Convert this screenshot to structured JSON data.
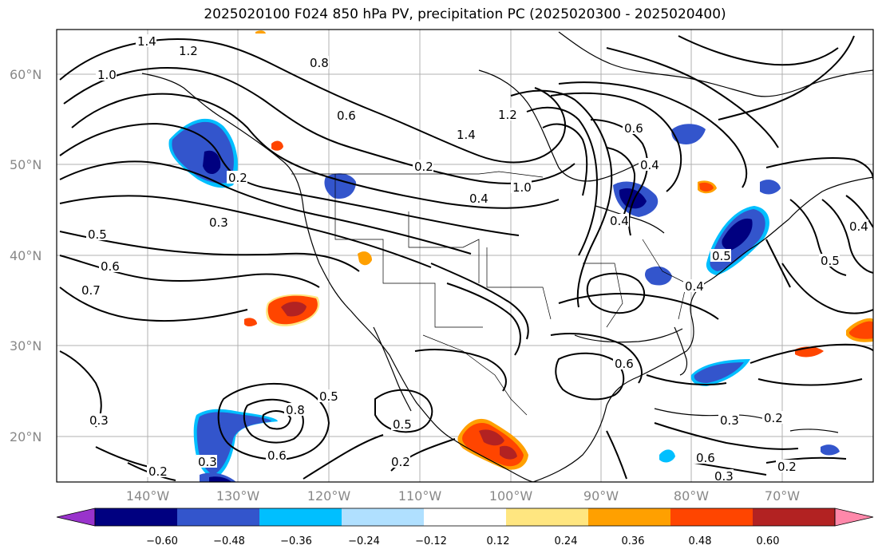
{
  "title": "2025020100 F024 850 hPa PV, precipitation PC (2025020300 - 2025020400)",
  "lat_labels": [
    "60°N",
    "50°N",
    "40°N",
    "30°N",
    "20°N"
  ],
  "lon_labels": [
    "140°W",
    "130°W",
    "120°W",
    "110°W",
    "100°W",
    "90°W",
    "80°W",
    "70°W"
  ],
  "colorbar": {
    "colors": [
      "#9933cc",
      "#000080",
      "#3355cc",
      "#00bfff",
      "#b0e0ff",
      "#ffffff",
      "#ffe680",
      "#ffa000",
      "#ff4500",
      "#b22222",
      "#ff88aa"
    ],
    "ticks": [
      "−0.60",
      "−0.48",
      "−0.36",
      "−0.24",
      "−0.12",
      "0.12",
      "0.24",
      "0.36",
      "0.48",
      "0.60"
    ]
  },
  "contour_labels": [
    "1.4",
    "1.2",
    "1.0",
    "0.8",
    "0.6",
    "0.4",
    "0.3",
    "0.2",
    "0.5",
    "0.6",
    "0.7",
    "0.3",
    "0.6",
    "0.8",
    "0.5",
    "0.5",
    "0.2",
    "0.3",
    "0.2",
    "1.4",
    "1.2",
    "1.0",
    "0.4",
    "0.6",
    "0.2",
    "0.6",
    "0.4",
    "0.5",
    "0.4",
    "0.3",
    "0.2",
    "0.6",
    "0.4",
    "0.5",
    "0.3",
    "0.2"
  ]
}
